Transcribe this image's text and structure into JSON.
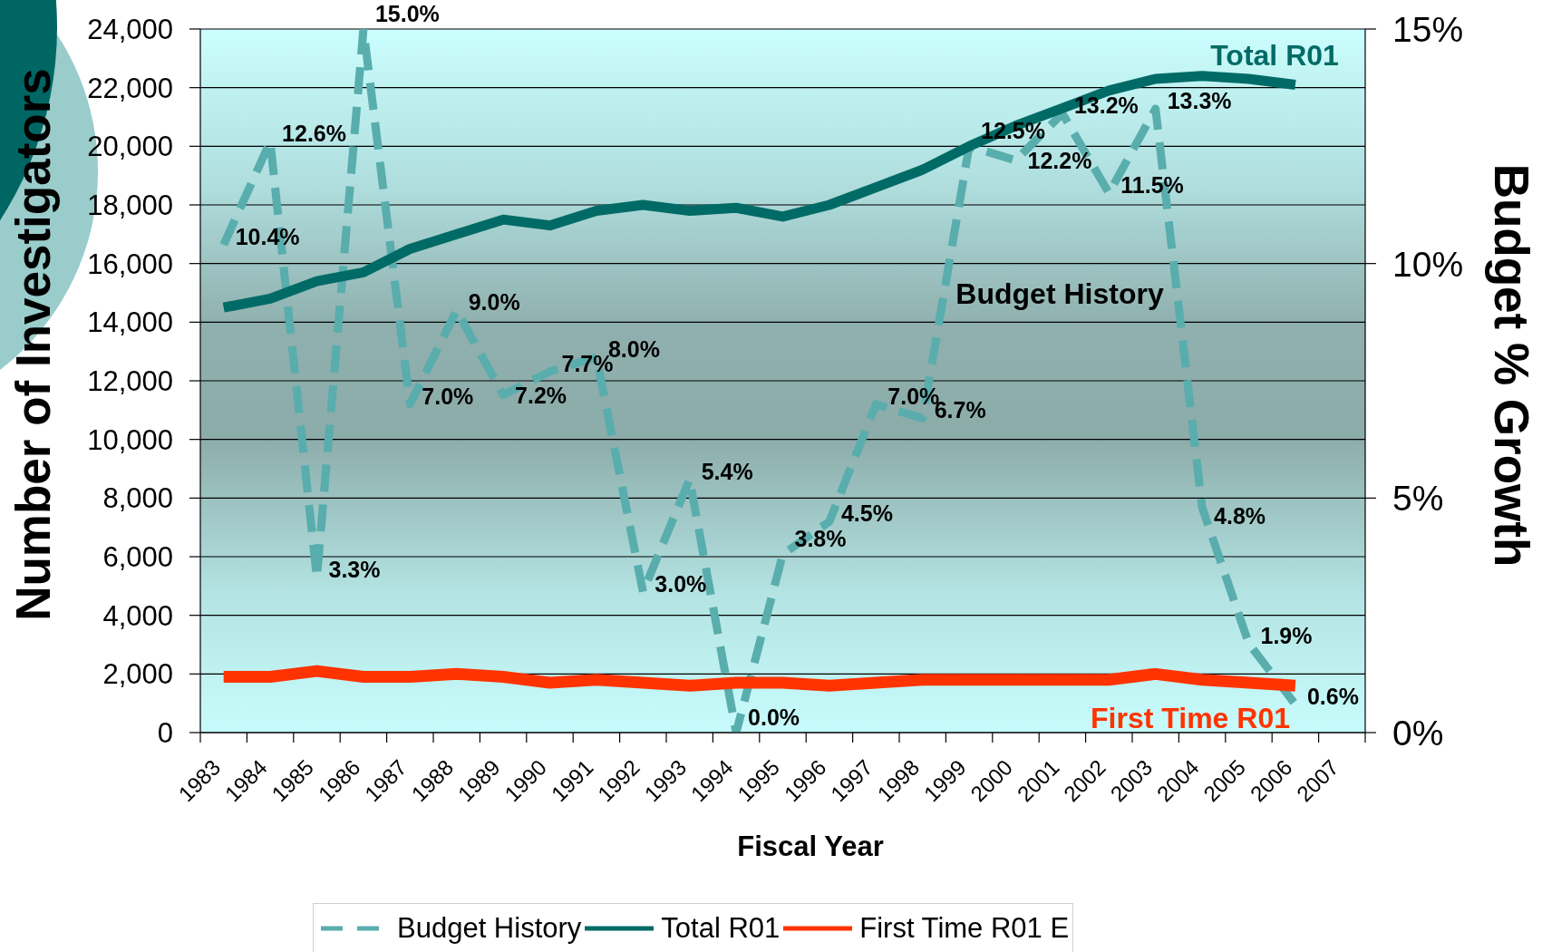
{
  "chart_data": {
    "type": "line",
    "xlabel": "Fiscal Year",
    "ylabel": "Number of Investigators",
    "y2label": "Budget % Growth",
    "categories": [
      "1983",
      "1984",
      "1985",
      "1986",
      "1987",
      "1988",
      "1989",
      "1990",
      "1991",
      "1992",
      "1993",
      "1994",
      "1995",
      "1996",
      "1997",
      "1998",
      "1999",
      "2000",
      "2001",
      "2002",
      "2003",
      "2004",
      "2005",
      "2006",
      "2007"
    ],
    "series": [
      {
        "name": "Budget History",
        "axis": "y2",
        "color": "#59adad",
        "line_style": "dashed",
        "values": [
          10.4,
          12.6,
          3.3,
          15.0,
          7.0,
          9.0,
          7.2,
          7.7,
          8.0,
          3.0,
          5.4,
          0.0,
          3.8,
          4.5,
          7.0,
          6.7,
          12.5,
          12.2,
          13.2,
          11.5,
          13.3,
          4.8,
          1.9,
          0.6,
          null
        ],
        "value_labels": [
          "10.4%",
          "12.6%",
          "3.3%",
          "15.0%",
          "7.0%",
          "9.0%",
          "7.2%",
          "7.7%",
          "8.0%",
          "3.0%",
          "5.4%",
          "0.0%",
          "3.8%",
          "4.5%",
          "7.0%",
          "6.7%",
          "12.5%",
          "12.2%",
          "13.2%",
          "11.5%",
          "13.3%",
          "4.8%",
          "1.9%",
          "0.6%",
          null
        ]
      },
      {
        "name": "Total R01",
        "color": "#006b66",
        "line_style": "solid",
        "values": [
          14500,
          14800,
          15400,
          15700,
          16500,
          17000,
          17500,
          17300,
          17800,
          18000,
          17800,
          17900,
          17600,
          18000,
          18600,
          19200,
          20000,
          20700,
          21300,
          21900,
          22300,
          22400,
          22300,
          22100,
          null
        ]
      },
      {
        "name": "First Time R01 E",
        "color": "#ff3300",
        "line_style": "solid",
        "values": [
          1900,
          1900,
          2100,
          1900,
          1900,
          2000,
          1900,
          1700,
          1800,
          1700,
          1600,
          1700,
          1700,
          1600,
          1700,
          1800,
          1800,
          1800,
          1800,
          1800,
          2000,
          1800,
          1700,
          1600,
          null
        ]
      }
    ],
    "ylim": [
      0,
      24000
    ],
    "yticks": [
      0,
      {
        "value": 2000,
        "label": "2,000"
      },
      {
        "value": 4000,
        "label": "4,000"
      },
      {
        "value": 6000,
        "label": "6,000"
      },
      {
        "value": 8000,
        "label": "8,000"
      },
      {
        "value": 10000,
        "label": "10,000"
      },
      {
        "value": 12000,
        "label": "12,000"
      },
      {
        "value": 14000,
        "label": "14,000"
      },
      {
        "value": 16000,
        "label": "16,000"
      },
      {
        "value": 18000,
        "label": "18,000"
      },
      {
        "value": 20000,
        "label": "20,000"
      },
      {
        "value": 22000,
        "label": "22,000"
      },
      {
        "value": 24000,
        "label": "24,000"
      }
    ],
    "y2lim": [
      0,
      15
    ],
    "y2ticks": [
      {
        "value": 0,
        "label": "0%"
      },
      {
        "value": 5,
        "label": "5%"
      },
      {
        "value": 10,
        "label": "10%"
      },
      {
        "value": 15,
        "label": "15%"
      }
    ],
    "grid": "y",
    "legend": "bottom",
    "annotations": [
      "Total R01",
      "Budget History",
      "First Time R01"
    ]
  }
}
